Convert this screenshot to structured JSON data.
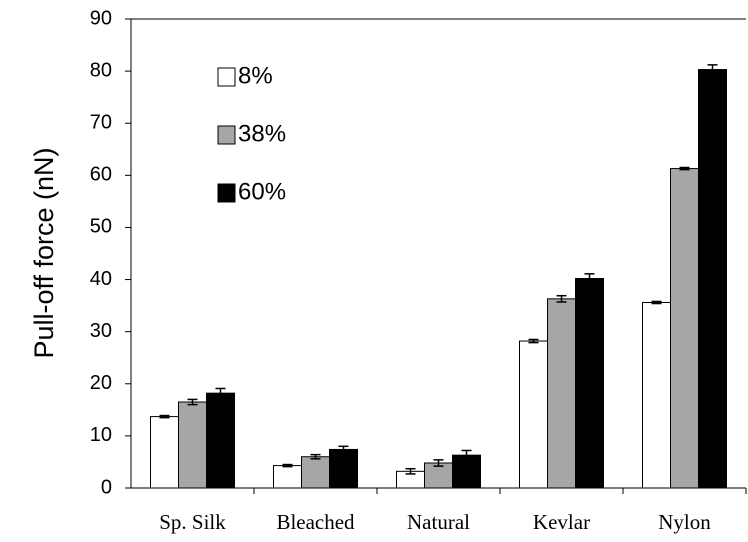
{
  "chart_data": {
    "type": "bar",
    "y_label": "Pull-off force (nN)",
    "categories": [
      "Sp. Silk",
      "Bleached",
      "Natural",
      "Kevlar",
      "Nylon"
    ],
    "series": [
      {
        "name": "8%",
        "color": "#ffffff",
        "values": [
          13.7,
          4.3,
          3.2,
          28.2,
          35.6
        ],
        "errors": [
          0.2,
          0.2,
          0.5,
          0.3,
          0.2
        ]
      },
      {
        "name": "38%",
        "color": "#a6a6a6",
        "values": [
          16.5,
          6.0,
          4.8,
          36.3,
          61.3
        ],
        "errors": [
          0.5,
          0.4,
          0.6,
          0.6,
          0.2
        ]
      },
      {
        "name": "60%",
        "color": "#000000",
        "values": [
          18.2,
          7.4,
          6.3,
          40.2,
          80.3
        ],
        "errors": [
          0.9,
          0.6,
          0.9,
          0.9,
          0.9
        ]
      }
    ],
    "ylim": [
      0,
      90
    ],
    "yticks": [
      0,
      10,
      20,
      30,
      40,
      50,
      60,
      70,
      80,
      90
    ],
    "grid": false,
    "legend": "upper left"
  }
}
